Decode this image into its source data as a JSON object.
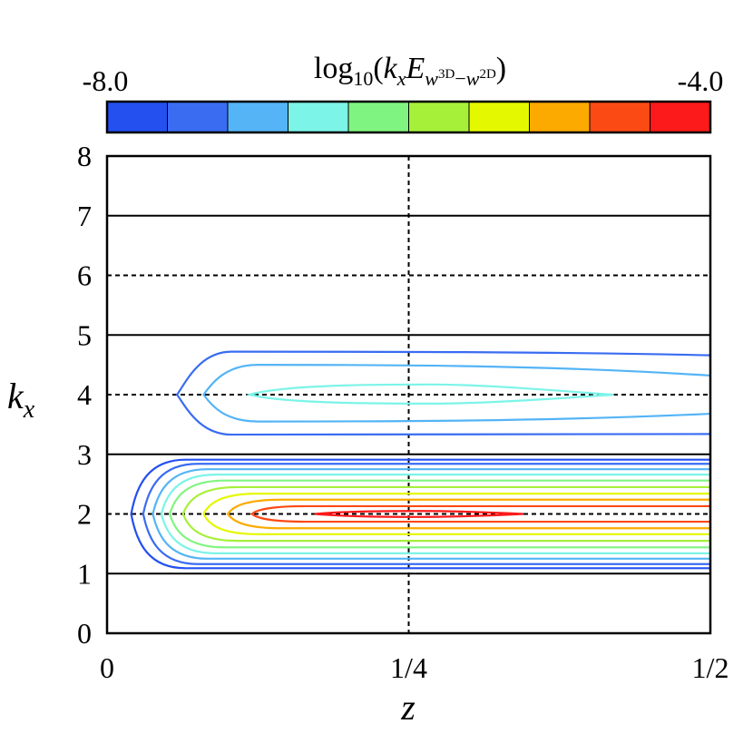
{
  "chart_data": {
    "type": "contour",
    "title_parts": {
      "func": "log",
      "func_sub": "10",
      "open": "(",
      "k": "k",
      "k_sub": "x",
      "E": "E",
      "E_sub_w1": "w",
      "E_sub_3d": "3D",
      "E_sub_minus": "−",
      "E_sub_w2": "w",
      "E_sub_2d": "2D",
      "close": ")"
    },
    "colorbar": {
      "min_label": "-8.0",
      "max_label": "-4.0",
      "min": -8.0,
      "max": -4.0,
      "levels": 10,
      "colors": [
        "#2450f0",
        "#3a6cf2",
        "#54b4f6",
        "#7cf4e8",
        "#80f480",
        "#a6f03a",
        "#e4f800",
        "#fcaa00",
        "#fc4a14",
        "#fc1a1a"
      ]
    },
    "xlabel": "z",
    "ylabel_main": "k",
    "ylabel_sub": "x",
    "xlim": [
      0,
      0.5
    ],
    "ylim": [
      0,
      8
    ],
    "xticks": [
      {
        "value": 0,
        "label": "0"
      },
      {
        "value": 0.25,
        "label": "1/4"
      },
      {
        "value": 0.5,
        "label": "1/2"
      }
    ],
    "yticks": [
      {
        "value": 0,
        "label": "0"
      },
      {
        "value": 1,
        "label": "1"
      },
      {
        "value": 2,
        "label": "2"
      },
      {
        "value": 3,
        "label": "3"
      },
      {
        "value": 4,
        "label": "4"
      },
      {
        "value": 5,
        "label": "5"
      },
      {
        "value": 6,
        "label": "6"
      },
      {
        "value": 7,
        "label": "7"
      },
      {
        "value": 8,
        "label": "8"
      }
    ],
    "solid_hlines": [
      1,
      3,
      5,
      7
    ],
    "dashed_hlines": [
      2,
      4,
      6
    ],
    "dashed_vlines": [
      0.25
    ],
    "contours_kx2": [
      {
        "level": 1,
        "z_start": 0.02,
        "half_width": 0.91
      },
      {
        "level": 2,
        "z_start": 0.03,
        "half_width": 0.84
      },
      {
        "level": 3,
        "z_start": 0.038,
        "half_width": 0.75
      },
      {
        "level": 4,
        "z_start": 0.045,
        "half_width": 0.66
      },
      {
        "level": 5,
        "z_start": 0.052,
        "half_width": 0.56
      },
      {
        "level": 6,
        "z_start": 0.063,
        "half_width": 0.45
      },
      {
        "level": 7,
        "z_start": 0.08,
        "half_width": 0.34
      },
      {
        "level": 8,
        "z_start": 0.1,
        "half_width": 0.24
      },
      {
        "level": 9,
        "z_start": 0.12,
        "half_width": 0.13
      },
      {
        "level": 10,
        "z_start": 0.172,
        "z_end": 0.345,
        "half_width": 0.05
      }
    ],
    "contours_kx4": [
      {
        "level": 2,
        "z_start": 0.058,
        "upper": 4.72,
        "lower": 3.33,
        "right_upper": 4.66,
        "right_lower": 3.34
      },
      {
        "level": 3,
        "z_start": 0.08,
        "upper": 4.5,
        "lower": 3.55,
        "right_upper": 4.32,
        "right_lower": 3.68
      },
      {
        "level": 4,
        "z_start": 0.118,
        "z_end": 0.42,
        "upper": 4.17,
        "lower": 3.85
      }
    ]
  }
}
